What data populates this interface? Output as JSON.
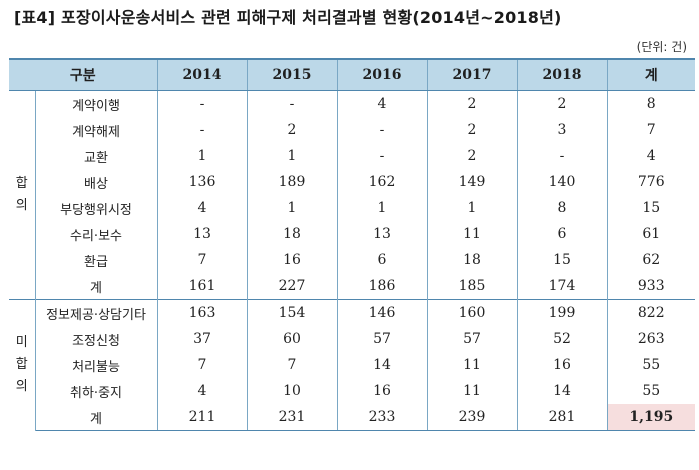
{
  "title": "[표4] 포장이사운송서비스 관련 피해구제 처리결과별 현황(2014년~2018년)",
  "unit": "(단위: 건)",
  "header": {
    "category": "구분",
    "columns": [
      "2014",
      "2015",
      "2016",
      "2017",
      "2018",
      "계"
    ]
  },
  "groups": [
    {
      "label": "합의",
      "rows": [
        {
          "label": "계약이행",
          "values": [
            "-",
            "-",
            "4",
            "2",
            "2",
            "8"
          ]
        },
        {
          "label": "계약해제",
          "values": [
            "-",
            "2",
            "-",
            "2",
            "3",
            "7"
          ]
        },
        {
          "label": "교환",
          "values": [
            "1",
            "1",
            "-",
            "2",
            "-",
            "4"
          ]
        },
        {
          "label": "배상",
          "values": [
            "136",
            "189",
            "162",
            "149",
            "140",
            "776"
          ]
        },
        {
          "label": "부당행위시정",
          "values": [
            "4",
            "1",
            "1",
            "1",
            "8",
            "15"
          ]
        },
        {
          "label": "수리·보수",
          "values": [
            "13",
            "18",
            "13",
            "11",
            "6",
            "61"
          ]
        },
        {
          "label": "환급",
          "values": [
            "7",
            "16",
            "6",
            "18",
            "15",
            "62"
          ]
        },
        {
          "label": "계",
          "values": [
            "161",
            "227",
            "186",
            "185",
            "174",
            "933"
          ]
        }
      ]
    },
    {
      "label": "미합의",
      "rows": [
        {
          "label": "정보제공·상담기타",
          "values": [
            "163",
            "154",
            "146",
            "160",
            "199",
            "822"
          ]
        },
        {
          "label": "조정신청",
          "values": [
            "37",
            "60",
            "57",
            "57",
            "52",
            "263"
          ]
        },
        {
          "label": "처리불능",
          "values": [
            "7",
            "7",
            "14",
            "11",
            "16",
            "55"
          ]
        },
        {
          "label": "취하·중지",
          "values": [
            "4",
            "10",
            "16",
            "11",
            "14",
            "55"
          ]
        },
        {
          "label": "계",
          "values": [
            "211",
            "231",
            "233",
            "239",
            "281",
            "1,195"
          ]
        }
      ]
    }
  ],
  "colors": {
    "header_bg": "#bcd8e8",
    "border": "#4f86ad",
    "highlight_bg": "#f6dede"
  }
}
